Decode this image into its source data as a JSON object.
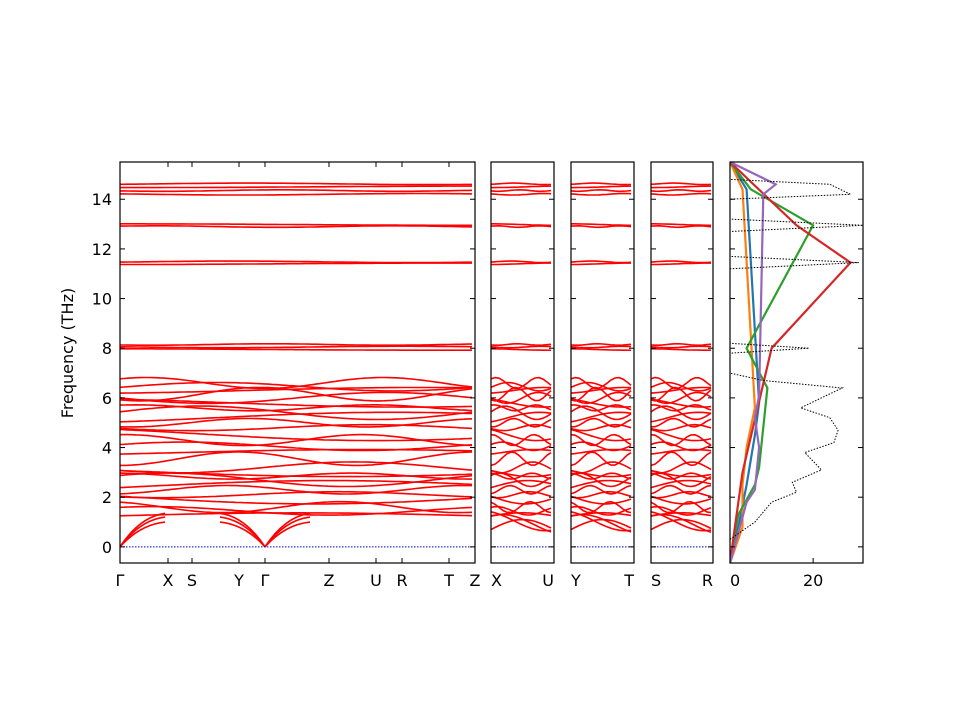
{
  "chart_data": [
    {
      "type": "line",
      "panel": "band-structure",
      "title": "",
      "xlabel": "",
      "ylabel": "Frequency (THz)",
      "ylim": [
        -0.65,
        15.5
      ],
      "yticks": [
        0,
        2,
        4,
        6,
        8,
        10,
        12,
        14
      ],
      "line_color": "#ff0000",
      "zero_line_color": "#0000cc",
      "grid": false,
      "segments": [
        {
          "labels": [
            "Γ",
            "X",
            "S",
            "Y",
            "Γ",
            "Z",
            "U",
            "R",
            "T",
            "Z"
          ]
        },
        {
          "labels": [
            "X",
            "U"
          ]
        },
        {
          "labels": [
            "Y",
            "T"
          ]
        },
        {
          "labels": [
            "S",
            "R"
          ]
        }
      ],
      "flat_bands_thz": [
        1.25,
        1.45,
        1.6,
        2.0,
        2.1,
        2.3,
        2.45,
        2.7,
        2.85,
        3.0,
        3.2,
        3.55,
        3.8,
        4.05,
        4.3,
        4.55,
        4.8,
        5.0,
        5.2,
        5.4,
        5.6,
        5.8,
        6.0,
        6.15,
        6.3,
        6.45,
        6.6,
        7.95,
        8.05,
        8.15,
        11.4,
        11.48,
        12.9,
        12.98,
        14.2,
        14.35,
        14.5,
        14.62
      ],
      "acoustic_branch_top_thz": [
        1.0,
        1.2,
        1.35
      ]
    },
    {
      "type": "area",
      "panel": "density-of-states",
      "xlim": [
        0,
        32
      ],
      "xticks": [
        0,
        20
      ],
      "ylim": [
        -0.65,
        15.5
      ],
      "total_style": "black dotted",
      "series": [
        {
          "color": "#1f77b4",
          "values": [
            [
              0.8,
              2
            ],
            [
              2.5,
              4
            ],
            [
              4.5,
              6
            ],
            [
              5.8,
              7
            ],
            [
              14.4,
              4
            ]
          ]
        },
        {
          "color": "#ff7f0e",
          "values": [
            [
              0.8,
              3
            ],
            [
              2.5,
              3
            ],
            [
              4.0,
              4
            ],
            [
              5.6,
              6
            ],
            [
              14.4,
              3
            ]
          ]
        },
        {
          "color": "#2ca02c",
          "values": [
            [
              1.3,
              2
            ],
            [
              2.5,
              6
            ],
            [
              3.2,
              7
            ],
            [
              6.4,
              9
            ],
            [
              8.0,
              4
            ],
            [
              12.95,
              20
            ],
            [
              14.4,
              5
            ]
          ]
        },
        {
          "color": "#d62728",
          "values": [
            [
              0.6,
              1
            ],
            [
              3.0,
              3
            ],
            [
              8.0,
              10
            ],
            [
              11.45,
              29
            ],
            [
              12.95,
              16
            ]
          ]
        },
        {
          "color": "#9467bd",
          "values": [
            [
              1.8,
              4
            ],
            [
              2.3,
              6
            ],
            [
              4.0,
              7
            ],
            [
              5.2,
              6
            ],
            [
              6.1,
              7
            ],
            [
              14.2,
              8
            ],
            [
              14.6,
              11
            ]
          ]
        }
      ],
      "total": [
        [
          0.3,
          0
        ],
        [
          1.0,
          6
        ],
        [
          1.8,
          10
        ],
        [
          2.2,
          16
        ],
        [
          2.6,
          15
        ],
        [
          3.1,
          22
        ],
        [
          3.8,
          18
        ],
        [
          4.2,
          25
        ],
        [
          4.7,
          26
        ],
        [
          5.2,
          24
        ],
        [
          5.6,
          17
        ],
        [
          6.0,
          22
        ],
        [
          6.4,
          27
        ],
        [
          6.7,
          8
        ],
        [
          7.0,
          0
        ],
        [
          7.8,
          0
        ],
        [
          8.0,
          19
        ],
        [
          8.2,
          0
        ],
        [
          11.2,
          0
        ],
        [
          11.45,
          31
        ],
        [
          11.7,
          0
        ],
        [
          12.7,
          0
        ],
        [
          12.95,
          32
        ],
        [
          13.2,
          0
        ],
        [
          14.0,
          0
        ],
        [
          14.2,
          29
        ],
        [
          14.6,
          24
        ],
        [
          14.8,
          0
        ]
      ]
    }
  ]
}
